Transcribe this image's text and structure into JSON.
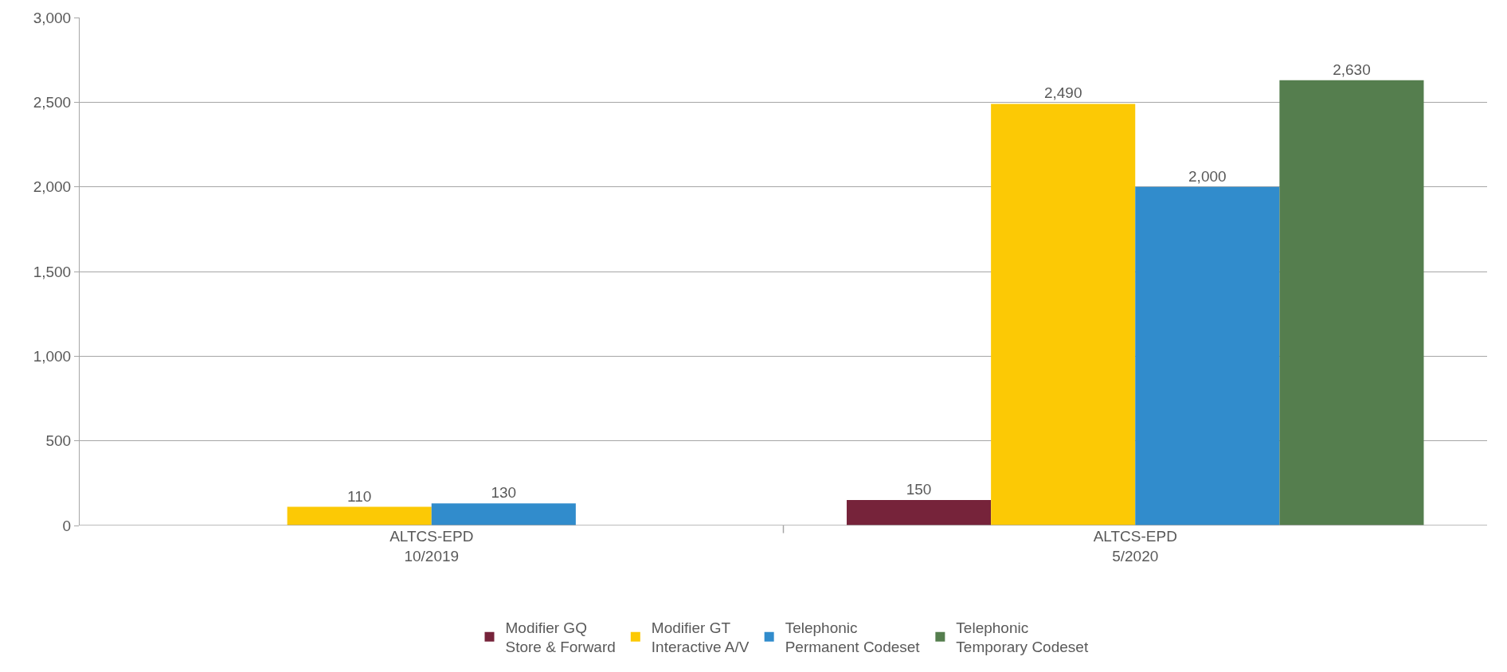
{
  "chart_data": {
    "type": "bar",
    "categories": [
      "ALTCS-EPD\n10/2019",
      "ALTCS-EPD\n5/2020"
    ],
    "series": [
      {
        "name": "Modifier GQ\nStore & Forward",
        "color": "#76233a",
        "values": [
          0,
          150
        ],
        "value_labels": [
          null,
          "150"
        ]
      },
      {
        "name": "Modifier GT\nInteractive A/V",
        "color": "#fcc905",
        "values": [
          110,
          2490
        ],
        "value_labels": [
          "110",
          "2,490"
        ]
      },
      {
        "name": "Telephonic\nPermanent Codeset",
        "color": "#318ccc",
        "values": [
          130,
          2000
        ],
        "value_labels": [
          "130",
          "2,000"
        ]
      },
      {
        "name": "Telephonic\nTemporary Codeset",
        "color": "#557e4e",
        "values": [
          null,
          2630
        ],
        "value_labels": [
          null,
          "2,630"
        ]
      }
    ],
    "ylim": [
      0,
      3000
    ],
    "yticks": [
      {
        "value": 0,
        "label": "0"
      },
      {
        "value": 500,
        "label": "500"
      },
      {
        "value": 1000,
        "label": "1,000"
      },
      {
        "value": 1500,
        "label": "1,500"
      },
      {
        "value": 2000,
        "label": "2,000"
      },
      {
        "value": 2500,
        "label": "2,500"
      },
      {
        "value": 3000,
        "label": "3,000"
      }
    ],
    "grid": "y",
    "legend": "bottom"
  }
}
